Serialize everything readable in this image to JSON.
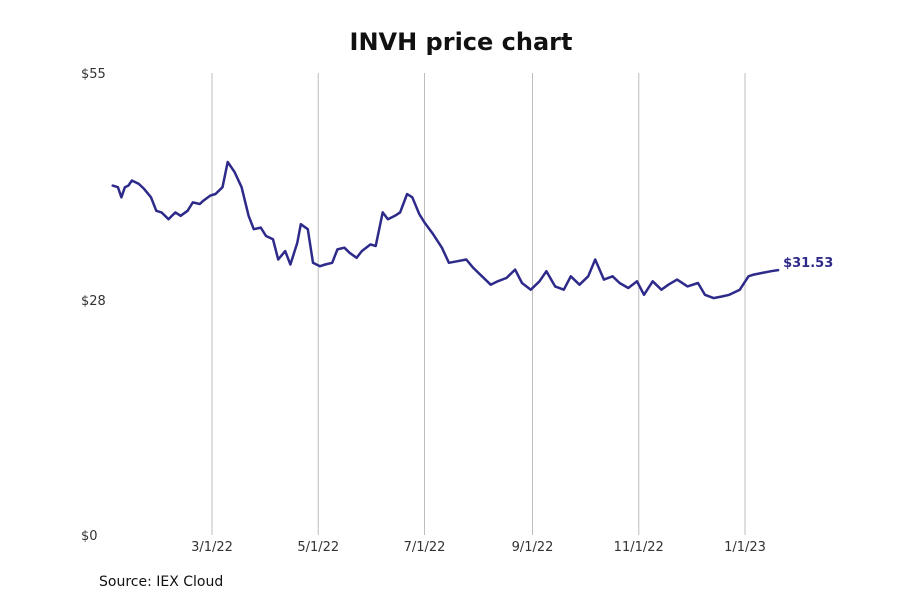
{
  "chart_data": {
    "type": "line",
    "title": "INVH price chart",
    "xlabel": "",
    "ylabel": "",
    "y_ticks": [
      {
        "value": 55,
        "label": "$55"
      },
      {
        "value": 28,
        "label": "$28"
      },
      {
        "value": 0,
        "label": "$0"
      }
    ],
    "ylim": [
      0,
      55
    ],
    "xlim": [
      "2022-01-01",
      "2023-02-28"
    ],
    "x_ticks": [
      {
        "date": "2022-03-01",
        "label": "3/1/22"
      },
      {
        "date": "2022-05-01",
        "label": "5/1/22"
      },
      {
        "date": "2022-07-01",
        "label": "7/1/22"
      },
      {
        "date": "2022-09-01",
        "label": "9/1/22"
      },
      {
        "date": "2022-11-01",
        "label": "11/1/22"
      },
      {
        "date": "2023-01-01",
        "label": "1/1/23"
      }
    ],
    "grid": {
      "vertical": true,
      "horizontal": false
    },
    "line_color": "#2e2a8a",
    "end_label": "$31.53",
    "series": [
      {
        "x": [
          "2022-01-03",
          "2022-01-06",
          "2022-01-08",
          "2022-01-10",
          "2022-01-12",
          "2022-01-14",
          "2022-01-18",
          "2022-01-21",
          "2022-01-25",
          "2022-01-28",
          "2022-01-31",
          "2022-02-04",
          "2022-02-08",
          "2022-02-11",
          "2022-02-15",
          "2022-02-18",
          "2022-02-22",
          "2022-02-24",
          "2022-02-28",
          "2022-03-03",
          "2022-03-07",
          "2022-03-10",
          "2022-03-14",
          "2022-03-18",
          "2022-03-22",
          "2022-03-25",
          "2022-03-29",
          "2022-04-01",
          "2022-04-05",
          "2022-04-08",
          "2022-04-12",
          "2022-04-15",
          "2022-04-19",
          "2022-04-21",
          "2022-04-25",
          "2022-04-28",
          "2022-05-02",
          "2022-05-05",
          "2022-05-09",
          "2022-05-12",
          "2022-05-16",
          "2022-05-19",
          "2022-05-23",
          "2022-05-26",
          "2022-05-31",
          "2022-06-03",
          "2022-06-07",
          "2022-06-10",
          "2022-06-14",
          "2022-06-17",
          "2022-06-21",
          "2022-06-24",
          "2022-06-28",
          "2022-07-01",
          "2022-07-06",
          "2022-07-11",
          "2022-07-15",
          "2022-07-20",
          "2022-07-25",
          "2022-07-29",
          "2022-08-03",
          "2022-08-08",
          "2022-08-12",
          "2022-08-17",
          "2022-08-22",
          "2022-08-26",
          "2022-08-31",
          "2022-09-05",
          "2022-09-09",
          "2022-09-14",
          "2022-09-19",
          "2022-09-23",
          "2022-09-28",
          "2022-10-03",
          "2022-10-07",
          "2022-10-12",
          "2022-10-17",
          "2022-10-21",
          "2022-10-26",
          "2022-10-31",
          "2022-11-04",
          "2022-11-09",
          "2022-11-14",
          "2022-11-18",
          "2022-11-23",
          "2022-11-29",
          "2022-12-05",
          "2022-12-09",
          "2022-12-14",
          "2022-12-19",
          "2022-12-23",
          "2022-12-29",
          "2023-01-03",
          "2023-01-06",
          "2023-01-11",
          "2023-01-16",
          "2023-01-20"
        ],
        "y": [
          41.6,
          41.4,
          40.2,
          41.4,
          41.6,
          42.2,
          41.8,
          41.2,
          40.2,
          38.6,
          38.4,
          37.6,
          38.4,
          38.0,
          38.6,
          39.6,
          39.4,
          39.8,
          40.4,
          40.6,
          41.4,
          44.4,
          43.2,
          41.4,
          38.0,
          36.4,
          36.6,
          35.6,
          35.2,
          32.8,
          33.8,
          32.2,
          34.8,
          37.0,
          36.4,
          32.4,
          32.0,
          32.2,
          32.4,
          34.0,
          34.2,
          33.6,
          33.0,
          33.8,
          34.6,
          34.4,
          38.4,
          37.6,
          38.0,
          38.4,
          40.6,
          40.2,
          38.2,
          37.2,
          35.8,
          34.2,
          32.4,
          32.6,
          32.8,
          31.8,
          30.8,
          29.8,
          30.2,
          30.6,
          31.6,
          30.0,
          29.2,
          30.2,
          31.4,
          29.6,
          29.2,
          30.8,
          29.8,
          30.8,
          32.8,
          30.4,
          30.8,
          30.0,
          29.4,
          30.2,
          28.6,
          30.2,
          29.2,
          29.8,
          30.4,
          29.6,
          30.0,
          28.6,
          28.2,
          28.4,
          28.6,
          29.2,
          30.8,
          31.0,
          31.2,
          31.4,
          31.53
        ]
      }
    ]
  },
  "footer": {
    "source": "Source: IEX Cloud"
  }
}
